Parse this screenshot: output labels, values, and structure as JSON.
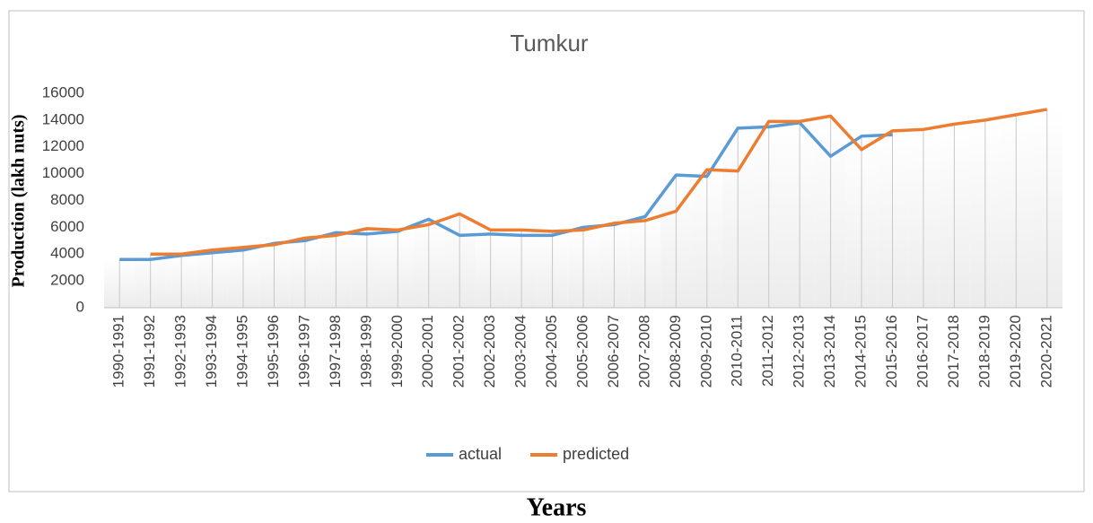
{
  "chart_data": {
    "type": "line",
    "title": "Tumkur",
    "y_label": "Production (lakh nuts)",
    "x_label": "Years",
    "categories": [
      "1990-1991",
      "1991-1992",
      "1992-1993",
      "1993-1994",
      "1994-1995",
      "1995-1996",
      "1996-1997",
      "1997-1998",
      "1998-1999",
      "1999-2000",
      "2000-2001",
      "2001-2002",
      "2002-2003",
      "2003-2004",
      "2004-2005",
      "2005-2006",
      "2006-2007",
      "2007-2008",
      "2008-2009",
      "2009-2010",
      "2010-2011",
      "2011-2012",
      "2012-2013",
      "2013-2014",
      "2014-2015",
      "2015-2016",
      "2016-2017",
      "2017-2018",
      "2018-2019",
      "2019-2020",
      "2020-2021"
    ],
    "series": [
      {
        "name": "actual",
        "color": "#5b9bd5",
        "values": [
          3600,
          3600,
          3900,
          4100,
          4300,
          4800,
          5000,
          5600,
          5500,
          5700,
          6600,
          5400,
          5500,
          5400,
          5400,
          6000,
          6200,
          6800,
          9900,
          9800,
          13400,
          13500,
          13800,
          11300,
          12800,
          12900,
          null,
          null,
          null,
          null,
          null
        ]
      },
      {
        "name": "predicted",
        "color": "#ed7d31",
        "values": [
          null,
          4000,
          4000,
          4300,
          4500,
          4700,
          5200,
          5400,
          5900,
          5800,
          6200,
          7000,
          5800,
          5800,
          5700,
          5800,
          6300,
          6500,
          7200,
          10300,
          10200,
          13900,
          13900,
          14300,
          11800,
          13200,
          13300,
          13700,
          14000,
          14400,
          14800
        ]
      }
    ],
    "ylim": [
      0,
      16000
    ],
    "yticks": [
      0,
      2000,
      4000,
      6000,
      8000,
      10000,
      12000,
      14000,
      16000
    ],
    "grid": false,
    "legend": "bottom"
  }
}
